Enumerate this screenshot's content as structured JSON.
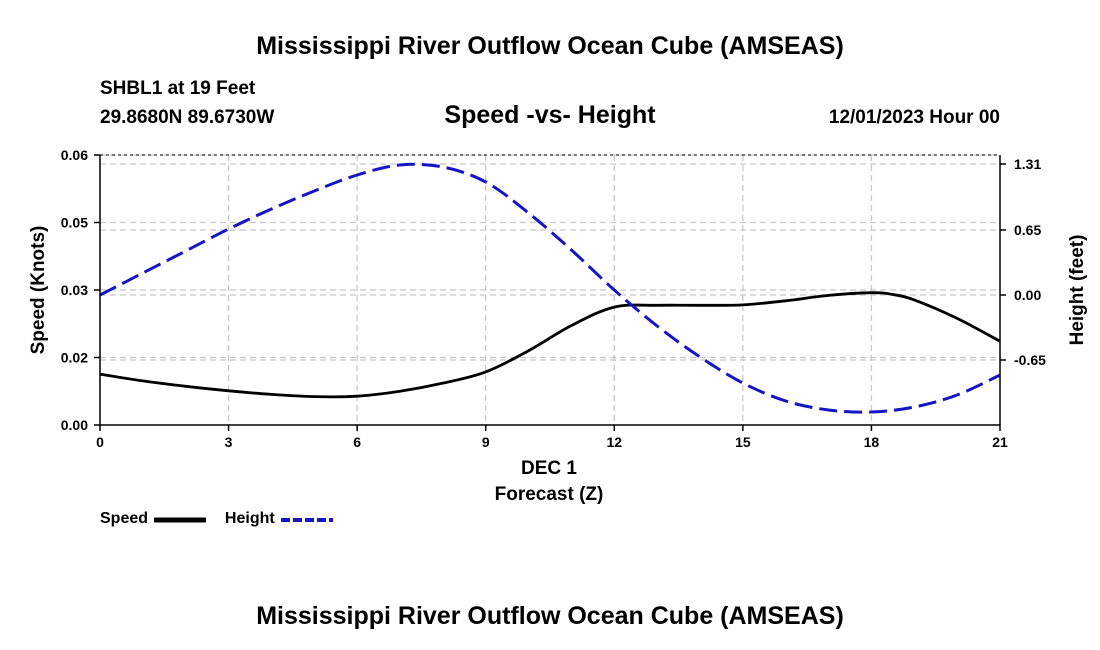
{
  "header": {
    "title": "Mississippi River Outflow Ocean Cube (AMSEAS)",
    "station": "SHBL1 at 19 Feet",
    "coords": "29.8680N  89.6730W",
    "date": "12/01/2023 Hour 00",
    "footer_title": "Mississippi River Outflow Ocean Cube (AMSEAS)"
  },
  "colors": {
    "speed": "#000000",
    "height": "#1515c8",
    "grid": "#c8c8c8"
  },
  "chart_data": {
    "type": "line",
    "title": "Speed -vs- Height",
    "xlabel": "Forecast (Z)",
    "x_date_label": "DEC 1",
    "ylabel": "Speed (Knots)",
    "y2label": "Height (feet)",
    "xlim": [
      0,
      21
    ],
    "ylim": [
      0,
      0.06
    ],
    "y2lim": [
      -1.3,
      1.4
    ],
    "x_ticks": [
      0,
      3,
      6,
      9,
      12,
      15,
      18,
      21
    ],
    "x_tick_labels": [
      "0",
      "3",
      "6",
      "9",
      "12",
      "15",
      "18",
      "21"
    ],
    "y_ticks": [
      0,
      0.015,
      0.03,
      0.045,
      0.06
    ],
    "y_tick_labels": [
      "0.00",
      "0.02",
      "0.03",
      "0.05",
      "0.06"
    ],
    "y2_ticks": [
      -0.65,
      0,
      0.65,
      1.31
    ],
    "y2_tick_labels": [
      "-0.65",
      "0.00",
      "0.65",
      "1.31"
    ],
    "grid": true,
    "legend_position": "bottom-left",
    "series": [
      {
        "name": "Speed",
        "axis": "left",
        "style": "solid",
        "x": [
          0,
          1,
          2,
          3,
          4,
          5,
          6,
          7,
          8,
          9,
          10,
          11,
          12,
          13,
          14,
          15,
          16,
          17,
          18,
          18.5,
          19,
          20,
          21
        ],
        "values": [
          0.0113,
          0.0098,
          0.0086,
          0.0076,
          0.0068,
          0.0063,
          0.0064,
          0.0075,
          0.0093,
          0.0118,
          0.0165,
          0.0221,
          0.0262,
          0.0266,
          0.0266,
          0.0267,
          0.0276,
          0.0288,
          0.0294,
          0.029,
          0.0278,
          0.0237,
          0.0186
        ]
      },
      {
        "name": "Height",
        "axis": "right",
        "style": "dashed",
        "x": [
          0,
          1,
          2,
          3,
          4,
          5,
          6,
          7,
          8,
          9,
          10,
          11,
          12,
          13,
          14,
          15,
          16,
          17,
          18,
          19,
          20,
          21
        ],
        "values": [
          0.0,
          0.22,
          0.44,
          0.66,
          0.86,
          1.04,
          1.2,
          1.3,
          1.28,
          1.13,
          0.82,
          0.45,
          0.05,
          -0.31,
          -0.62,
          -0.88,
          -1.06,
          -1.15,
          -1.17,
          -1.12,
          -1.0,
          -0.8
        ]
      }
    ]
  },
  "legend": {
    "speed_label": "Speed",
    "height_label": "Height"
  }
}
